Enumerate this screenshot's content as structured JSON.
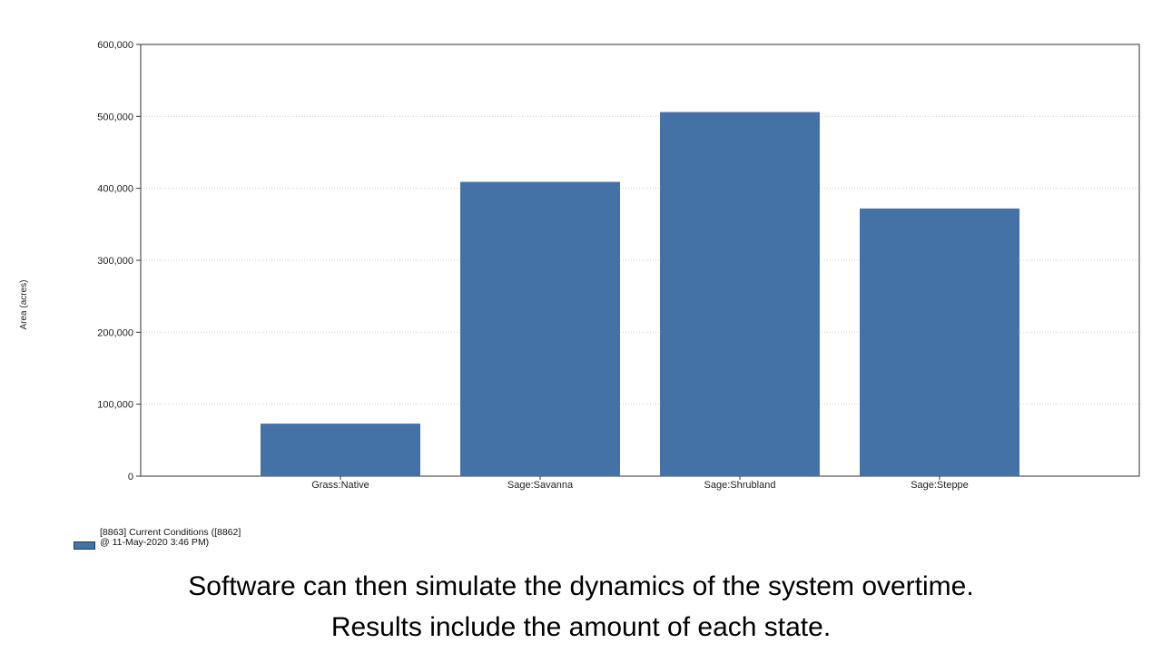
{
  "chart_data": {
    "type": "bar",
    "categories": [
      "Grass:Native",
      "Sage:Savanna",
      "Sage:Shrubland",
      "Sage:Steppe"
    ],
    "series": [
      {
        "name": "[8863] Current Conditions ([8862] @ 11-May-2020 3:46 PM)",
        "values": [
          73000,
          409000,
          506000,
          372000
        ]
      }
    ],
    "ylabel": "Area (acres)",
    "xlabel": "",
    "ylim": [
      0,
      600000
    ],
    "yticks": [
      0,
      100000,
      200000,
      300000,
      400000,
      500000,
      600000
    ],
    "ytick_labels": [
      "0",
      "100,000",
      "200,000",
      "300,000",
      "400,000",
      "500,000",
      "600,000"
    ],
    "grid": "horizontal dotted",
    "legend_position": "bottom-left",
    "bar_color": "#4472a7"
  },
  "caption": {
    "line1": "Software can then simulate the dynamics of the system overtime.",
    "line2": "Results include the amount of each state."
  }
}
